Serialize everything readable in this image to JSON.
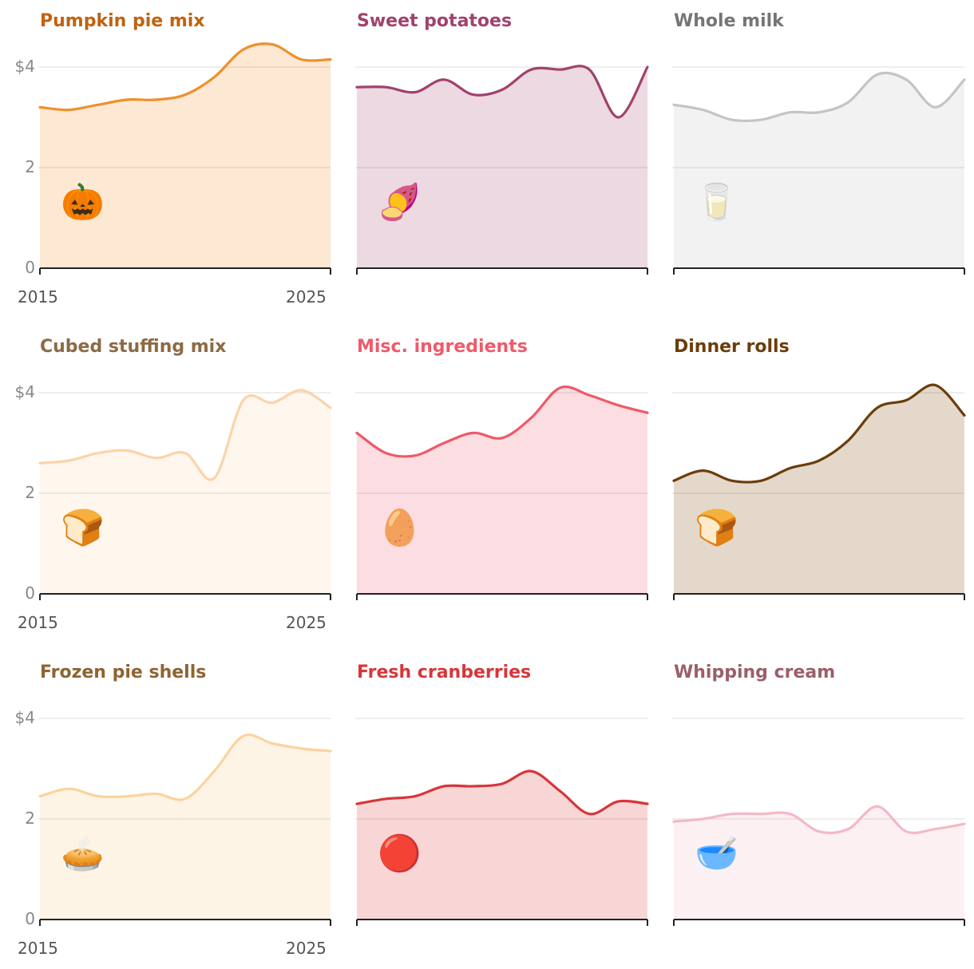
{
  "chart_data": [
    {
      "type": "area",
      "title": "Pumpkin pie mix",
      "color": "#f0902a",
      "fill": "#fde8d4",
      "icon": "jack-o-lantern-icon",
      "glyph": "🎃",
      "x": [
        2015,
        2016,
        2017,
        2018,
        2019,
        2020,
        2021,
        2022,
        2023,
        2024,
        2025
      ],
      "values": [
        3.2,
        3.15,
        3.25,
        3.35,
        3.35,
        3.45,
        3.8,
        4.35,
        4.45,
        4.15,
        4.15
      ],
      "ylim": [
        0,
        4
      ],
      "yticks": [
        "$4",
        "2",
        "0"
      ],
      "xticks": [
        "2015",
        "2025"
      ]
    },
    {
      "type": "area",
      "title": "Sweet potatoes",
      "color": "#a0426d",
      "fill": "#ecd9e2",
      "icon": "sweet-potato-icon",
      "glyph": "🍠",
      "x": [
        2015,
        2016,
        2017,
        2018,
        2019,
        2020,
        2021,
        2022,
        2023,
        2024,
        2025
      ],
      "values": [
        3.6,
        3.6,
        3.5,
        3.75,
        3.45,
        3.55,
        3.95,
        3.95,
        3.95,
        3.0,
        4.0
      ],
      "ylim": [
        0,
        4
      ],
      "yticks": [],
      "xticks": []
    },
    {
      "type": "area",
      "title": "Whole milk",
      "color": "#c4c4c4",
      "fill": "#f2f2f2",
      "icon": "glass-of-milk-icon",
      "glyph": "🥛",
      "x": [
        2015,
        2016,
        2017,
        2018,
        2019,
        2020,
        2021,
        2022,
        2023,
        2024,
        2025
      ],
      "values": [
        3.25,
        3.15,
        2.95,
        2.95,
        3.1,
        3.1,
        3.3,
        3.85,
        3.75,
        3.2,
        3.75
      ],
      "ylim": [
        0,
        4
      ],
      "yticks": [],
      "xticks": []
    },
    {
      "type": "area",
      "title": "Cubed stuffing mix",
      "color": "#fad4a8",
      "fill": "#fff6ee",
      "icon": "bread-cubes-icon",
      "glyph": "🍞",
      "x": [
        2015,
        2016,
        2017,
        2018,
        2019,
        2020,
        2021,
        2022,
        2023,
        2024,
        2025
      ],
      "values": [
        2.6,
        2.65,
        2.8,
        2.85,
        2.7,
        2.8,
        2.3,
        3.85,
        3.8,
        4.05,
        3.7
      ],
      "ylim": [
        0,
        4
      ],
      "yticks": [
        "$4",
        "2",
        "0"
      ],
      "xticks": [
        "2015",
        "2025"
      ]
    },
    {
      "type": "area",
      "title": "Misc. ingredients",
      "color": "#ee5a6a",
      "fill": "#fcdde1",
      "icon": "misc-ingredients-icon",
      "glyph": "🥚",
      "x": [
        2015,
        2016,
        2017,
        2018,
        2019,
        2020,
        2021,
        2022,
        2023,
        2024,
        2025
      ],
      "values": [
        3.2,
        2.8,
        2.75,
        3.0,
        3.2,
        3.1,
        3.5,
        4.1,
        3.95,
        3.75,
        3.6
      ],
      "ylim": [
        0,
        4
      ],
      "yticks": [],
      "xticks": []
    },
    {
      "type": "area",
      "title": "Dinner rolls",
      "color": "#6b3d0b",
      "fill": "#e3d8ca",
      "icon": "bread-loaf-icon",
      "glyph": "🍞",
      "x": [
        2015,
        2016,
        2017,
        2018,
        2019,
        2020,
        2021,
        2022,
        2023,
        2024,
        2025
      ],
      "values": [
        2.25,
        2.45,
        2.25,
        2.25,
        2.5,
        2.65,
        3.05,
        3.7,
        3.85,
        4.15,
        3.55
      ],
      "ylim": [
        0,
        4
      ],
      "yticks": [],
      "xticks": []
    },
    {
      "type": "area",
      "title": "Frozen pie shells",
      "color": "#fbd39e",
      "fill": "#fef4e6",
      "icon": "pie-icon",
      "glyph": "🥧",
      "x": [
        2015,
        2016,
        2017,
        2018,
        2019,
        2020,
        2021,
        2022,
        2023,
        2024,
        2025
      ],
      "values": [
        2.45,
        2.6,
        2.45,
        2.45,
        2.5,
        2.4,
        2.95,
        3.65,
        3.5,
        3.4,
        3.35
      ],
      "ylim": [
        0,
        4
      ],
      "yticks": [
        "$4",
        "2",
        "0"
      ],
      "xticks": [
        "2015",
        "2025"
      ]
    },
    {
      "type": "area",
      "title": "Fresh cranberries",
      "color": "#d7363a",
      "fill": "#f8d6d6",
      "icon": "cranberries-icon",
      "glyph": "🔴",
      "x": [
        2015,
        2016,
        2017,
        2018,
        2019,
        2020,
        2021,
        2022,
        2023,
        2024,
        2025
      ],
      "values": [
        2.3,
        2.4,
        2.45,
        2.65,
        2.65,
        2.7,
        2.95,
        2.55,
        2.1,
        2.35,
        2.3
      ],
      "ylim": [
        0,
        4
      ],
      "yticks": [],
      "xticks": []
    },
    {
      "type": "area",
      "title": "Whipping cream",
      "color": "#f5b8c6",
      "fill": "#fdf0f3",
      "icon": "mixing-bowl-icon",
      "glyph": "🥣",
      "x": [
        2015,
        2016,
        2017,
        2018,
        2019,
        2020,
        2021,
        2022,
        2023,
        2024,
        2025
      ],
      "values": [
        1.95,
        2.0,
        2.1,
        2.1,
        2.1,
        1.75,
        1.8,
        2.25,
        1.75,
        1.8,
        1.9
      ],
      "ylim": [
        0,
        4
      ],
      "yticks": [],
      "xticks": []
    }
  ]
}
